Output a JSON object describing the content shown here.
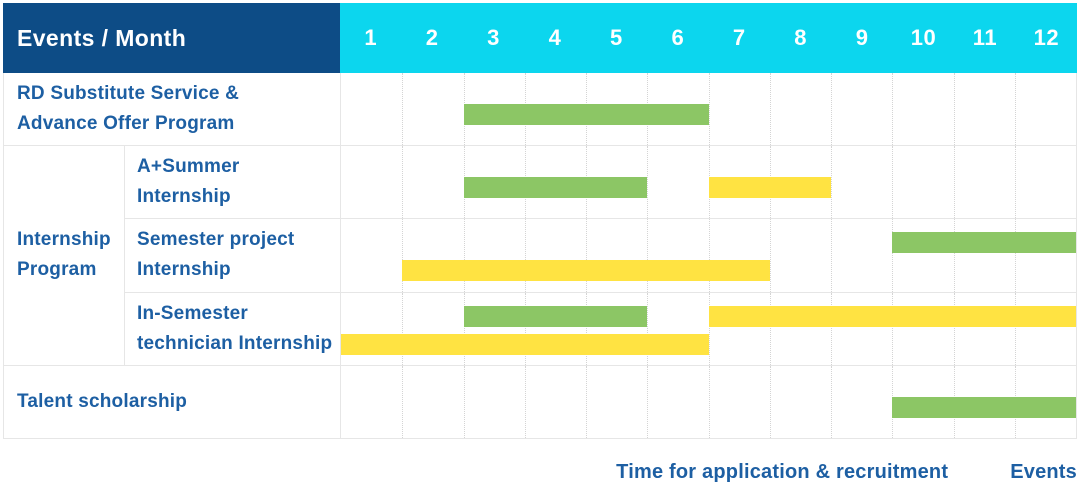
{
  "colors": {
    "navy_header": "#0d4c86",
    "cyan_header": "#0cd6ee",
    "green": "#8cc665",
    "yellow": "#ffe342",
    "label_text": "#1d5fa3"
  },
  "header": {
    "events_month_label": "Events / Month",
    "months": [
      "1",
      "2",
      "3",
      "4",
      "5",
      "6",
      "7",
      "8",
      "9",
      "10",
      "11",
      "12"
    ]
  },
  "group": {
    "label": "Internship Program",
    "label_lines": [
      "Internship",
      "Program"
    ]
  },
  "legend": {
    "items": [
      {
        "label": "Time for application & recruitment",
        "color": "#8cc665",
        "swatch": "green-square-icon"
      },
      {
        "label": "Events",
        "color": "#ffe342",
        "swatch": "yellow-square-icon"
      }
    ]
  },
  "chart_data": {
    "type": "bar",
    "subtype": "gantt-schedule",
    "title": "Events / Month",
    "x": {
      "label": "Month",
      "ticks": [
        1,
        2,
        3,
        4,
        5,
        6,
        7,
        8,
        9,
        10,
        11,
        12
      ],
      "range": [
        1,
        12
      ],
      "grid": "dotted-vertical"
    },
    "series_legend": [
      "Time for application & recruitment",
      "Events"
    ],
    "legend_position": "bottom-right",
    "rows": [
      {
        "label": "RD Substitute Service & Advance Offer Program",
        "label_lines": [
          "RD Substitute Service &",
          "Advance Offer Program"
        ],
        "group": null,
        "bars": [
          {
            "series": "Time for application & recruitment",
            "start_month": 3,
            "end_month": 6,
            "lane": "single"
          }
        ]
      },
      {
        "label": "A+Summer Internship",
        "label_lines": [
          "A+Summer",
          "Internship"
        ],
        "group": "Internship Program",
        "bars": [
          {
            "series": "Time for application & recruitment",
            "start_month": 3,
            "end_month": 5,
            "lane": "single"
          },
          {
            "series": "Events",
            "start_month": 7,
            "end_month": 8,
            "lane": "single"
          }
        ]
      },
      {
        "label": "Semester project Internship",
        "label_lines": [
          "Semester project",
          "Internship"
        ],
        "group": "Internship Program",
        "bars": [
          {
            "series": "Time for application & recruitment",
            "start_month": 10,
            "end_month": 12,
            "lane": "top"
          },
          {
            "series": "Events",
            "start_month": 2,
            "end_month": 7,
            "lane": "bottom"
          }
        ]
      },
      {
        "label": "In-Semester technician Internship",
        "label_lines": [
          "In-Semester",
          "technician Internship"
        ],
        "group": "Internship Program",
        "bars": [
          {
            "series": "Time for application & recruitment",
            "start_month": 3,
            "end_month": 5,
            "lane": "top"
          },
          {
            "series": "Events",
            "start_month": 7,
            "end_month": 12,
            "lane": "top"
          },
          {
            "series": "Events",
            "start_month": 1,
            "end_month": 6,
            "lane": "bottom"
          }
        ]
      },
      {
        "label": "Talent scholarship",
        "label_lines": [
          "Talent scholarship"
        ],
        "group": null,
        "bars": [
          {
            "series": "Time for application & recruitment",
            "start_month": 10,
            "end_month": 12,
            "lane": "single"
          }
        ]
      }
    ]
  }
}
